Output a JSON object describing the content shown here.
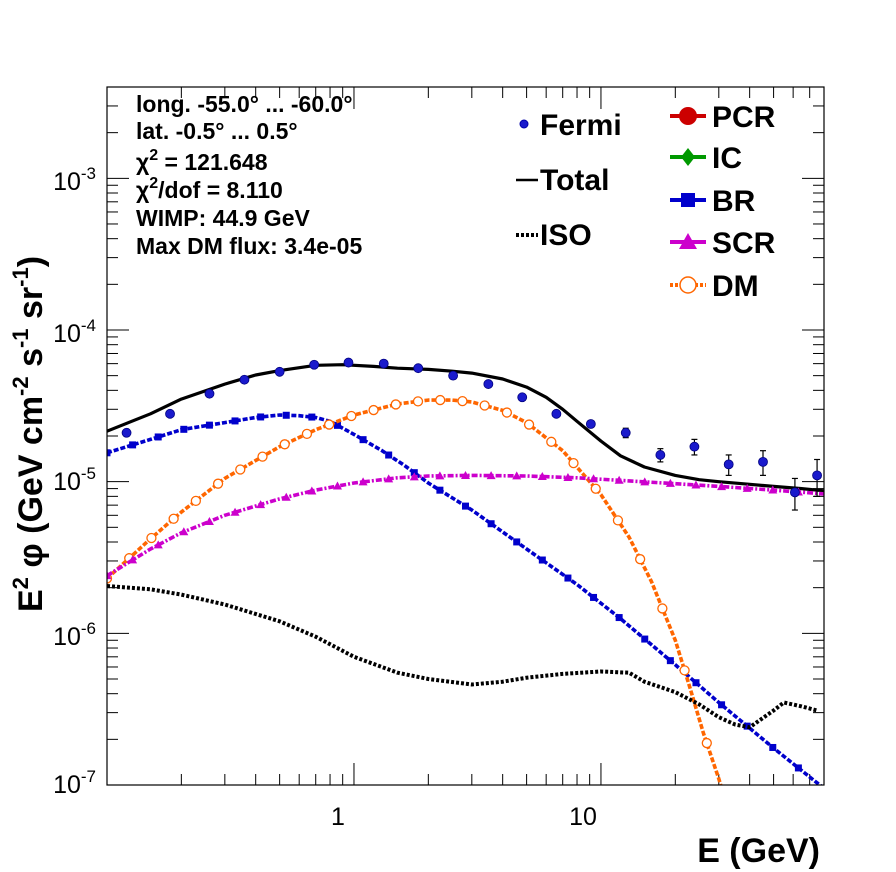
{
  "chart_data": {
    "type": "line",
    "xlabel": "E (GeV)",
    "ylabel": "E² φ (GeV cm⁻² s⁻¹ sr⁻¹)",
    "ylabel_parts": {
      "a": "E",
      "a_sup": "2",
      "b": " φ (GeV cm",
      "b_sup": "-2",
      "c": " s",
      "c_sup": "-1",
      "d": " sr",
      "d_sup": "-1",
      "e": ")"
    },
    "xscale": "log",
    "yscale": "log",
    "xlim": [
      0.1,
      80
    ],
    "ylim": [
      1e-07,
      0.004
    ],
    "x_ticks": [
      {
        "value": 1,
        "label": "1"
      },
      {
        "value": 10,
        "label": "10"
      }
    ],
    "y_ticks": [
      {
        "value": 1e-07,
        "base": "10",
        "exp": "-7"
      },
      {
        "value": 1e-06,
        "base": "10",
        "exp": "-6"
      },
      {
        "value": 1e-05,
        "base": "10",
        "exp": "-5"
      },
      {
        "value": 0.0001,
        "base": "10",
        "exp": "-4"
      },
      {
        "value": 0.001,
        "base": "10",
        "exp": "-3"
      }
    ],
    "info": {
      "long": "long. -55.0° ... -60.0°",
      "lat": "lat. -0.5° ... 0.5°",
      "chi2_sym": "χ",
      "chi2_sup": "2",
      "chi2_val": " = 121.648",
      "chi2dof_val": "/dof = 8.110",
      "wimp": "WIMP: 44.9 GeV",
      "maxdm": "Max DM flux: 3.4e-05"
    },
    "legend_left": [
      {
        "name": "Fermi",
        "style": "points"
      },
      {
        "name": "Total",
        "style": "line"
      },
      {
        "name": "ISO",
        "style": "dotted"
      }
    ],
    "legend_right": [
      {
        "name": "PCR",
        "color": "#cc0000",
        "marker": "circle"
      },
      {
        "name": "IC",
        "color": "#009900",
        "marker": "diamond"
      },
      {
        "name": "BR",
        "color": "#0000cc",
        "marker": "square"
      },
      {
        "name": "SCR",
        "color": "#cc00cc",
        "marker": "triangle"
      },
      {
        "name": "DM",
        "color": "#ff6600",
        "marker": "open-circle"
      }
    ],
    "fermi": {
      "x": [
        0.12,
        0.18,
        0.26,
        0.36,
        0.5,
        0.69,
        0.95,
        1.32,
        1.82,
        2.52,
        3.5,
        4.8,
        6.6,
        9.1,
        12.6,
        17.4,
        23.9,
        32.9,
        45.3,
        61,
        75
      ],
      "y": [
        2.1e-05,
        2.8e-05,
        3.8e-05,
        4.7e-05,
        5.3e-05,
        5.9e-05,
        6.1e-05,
        6e-05,
        5.6e-05,
        5e-05,
        4.4e-05,
        3.6e-05,
        2.8e-05,
        2.4e-05,
        2.1e-05,
        1.5e-05,
        1.7e-05,
        1.3e-05,
        1.35e-05,
        8.5e-06,
        1.1e-05
      ],
      "err_lo": [
        1e-06,
        1e-06,
        1e-06,
        1e-06,
        1e-06,
        1e-06,
        1e-06,
        1e-06,
        1e-06,
        1e-06,
        1e-06,
        1e-06,
        1e-06,
        1e-06,
        1.5e-06,
        1.5e-06,
        2e-06,
        2e-06,
        2.5e-06,
        2e-06,
        3e-06
      ],
      "err_hi": [
        1e-06,
        1e-06,
        1e-06,
        1e-06,
        1e-06,
        1e-06,
        1e-06,
        1e-06,
        1e-06,
        1e-06,
        1e-06,
        1e-06,
        1e-06,
        1e-06,
        1.5e-06,
        1.5e-06,
        2e-06,
        2e-06,
        2.5e-06,
        2e-06,
        3e-06
      ]
    },
    "series": [
      {
        "name": "Total",
        "color": "#000000",
        "style": "solid",
        "x": [
          0.1,
          0.15,
          0.2,
          0.3,
          0.4,
          0.5,
          0.7,
          0.9,
          1.2,
          1.5,
          2,
          2.5,
          3,
          4,
          5,
          6,
          7,
          8,
          10,
          12,
          15,
          20,
          25,
          30,
          40,
          50,
          65,
          80
        ],
        "y": [
          2.15e-05,
          2.8e-05,
          3.5e-05,
          4.4e-05,
          5.05e-05,
          5.4e-05,
          5.85e-05,
          5.9e-05,
          5.75e-05,
          5.6e-05,
          5.5e-05,
          5.35e-05,
          5.2e-05,
          4.75e-05,
          4.2e-05,
          3.6e-05,
          3e-05,
          2.5e-05,
          1.85e-05,
          1.48e-05,
          1.25e-05,
          1.1e-05,
          1.03e-05,
          1e-05,
          9.6e-06,
          9.3e-06,
          9e-06,
          8.7e-06
        ]
      },
      {
        "name": "BR",
        "color": "#0000cc",
        "style": "dashed",
        "marker": "square",
        "x": [
          0.1,
          0.15,
          0.2,
          0.3,
          0.4,
          0.5,
          0.6,
          0.7,
          0.8,
          1,
          1.3,
          1.6,
          2,
          3,
          5,
          8,
          12,
          20,
          30,
          50,
          80
        ],
        "y": [
          1.55e-05,
          1.9e-05,
          2.2e-05,
          2.45e-05,
          2.65e-05,
          2.75e-05,
          2.72e-05,
          2.65e-05,
          2.5e-05,
          2.05e-05,
          1.6e-05,
          1.28e-05,
          9.8e-06,
          6.5e-06,
          3.6e-06,
          2.1e-06,
          1.25e-06,
          6.2e-07,
          3.5e-07,
          1.75e-07,
          9.5e-08
        ]
      },
      {
        "name": "DM",
        "color": "#ff6600",
        "style": "dashed",
        "marker": "open-circle",
        "x": [
          0.1,
          0.15,
          0.2,
          0.3,
          0.5,
          0.7,
          1,
          1.5,
          2,
          2.5,
          3,
          4,
          5,
          7,
          10,
          13,
          16,
          20,
          23,
          26,
          30,
          33
        ],
        "y": [
          2.3e-06,
          4.2e-06,
          6.3e-06,
          1.05e-05,
          1.7e-05,
          2.2e-05,
          2.75e-05,
          3.25e-05,
          3.45e-05,
          3.45e-05,
          3.35e-05,
          2.95e-05,
          2.45e-05,
          1.6e-05,
          8.2e-06,
          4.3e-06,
          2.2e-06,
          9e-07,
          4.3e-07,
          2.2e-07,
          1.1e-07,
          6.5e-08
        ]
      },
      {
        "name": "SCR",
        "color": "#cc00cc",
        "style": "dash-dot",
        "marker": "triangle",
        "x": [
          0.1,
          0.15,
          0.2,
          0.3,
          0.5,
          0.7,
          1,
          1.5,
          2,
          3,
          5,
          8,
          12,
          20,
          30,
          50,
          80
        ],
        "y": [
          2.4e-06,
          3.6e-06,
          4.6e-06,
          6e-06,
          7.7e-06,
          8.8e-06,
          9.8e-06,
          1.06e-05,
          1.09e-05,
          1.1e-05,
          1.09e-05,
          1.06e-05,
          1.02e-05,
          9.7e-06,
          9.3e-06,
          8.8e-06,
          8.3e-06
        ]
      },
      {
        "name": "ISO",
        "color": "#000000",
        "style": "dotted",
        "x": [
          0.1,
          0.15,
          0.2,
          0.3,
          0.5,
          0.7,
          1,
          1.5,
          2,
          3,
          4,
          5,
          7,
          10,
          13,
          15,
          20,
          25,
          30,
          35,
          40,
          50,
          55,
          65,
          75
        ],
        "y": [
          2.05e-06,
          1.95e-06,
          1.8e-06,
          1.55e-06,
          1.2e-06,
          9.5e-07,
          7e-07,
          5.5e-07,
          5e-07,
          4.6e-07,
          4.8e-07,
          5.1e-07,
          5.4e-07,
          5.6e-07,
          5.5e-07,
          4.8e-07,
          4.1e-07,
          3.4e-07,
          2.8e-07,
          2.5e-07,
          2.4e-07,
          3.1e-07,
          3.5e-07,
          3.3e-07,
          3.1e-07
        ]
      }
    ]
  }
}
